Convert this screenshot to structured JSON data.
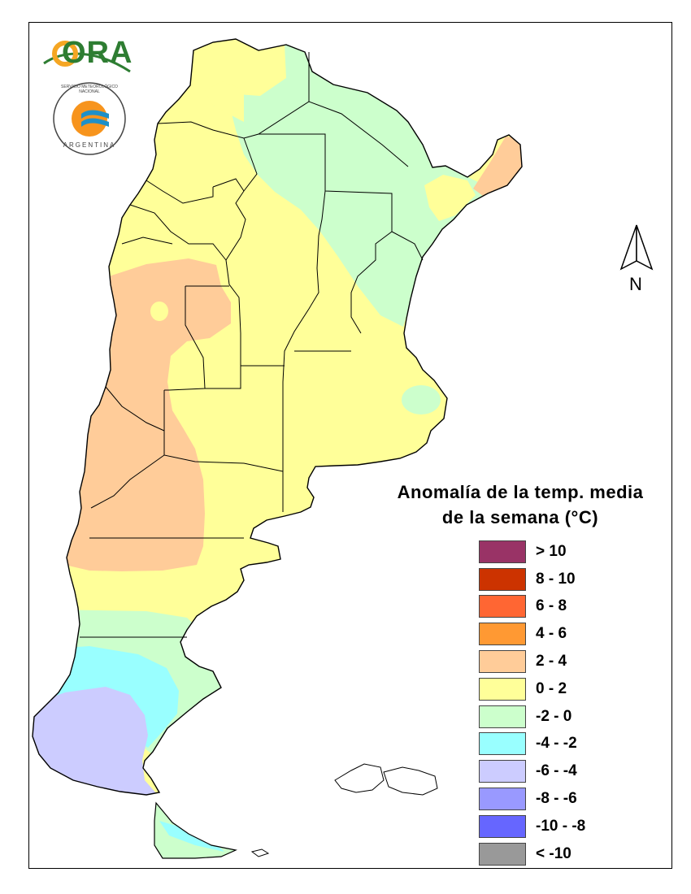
{
  "logos": {
    "ora_text": "ORA",
    "smn_ring_text": "SERVICIO METEOROLÓGICO NACIONAL",
    "smn_country": "ARGENTINA"
  },
  "north_arrow": {
    "label": "N"
  },
  "legend": {
    "title_line1": "Anomalía de la temp. media",
    "title_line2": "de la semana (°C)",
    "items": [
      {
        "label": "> 10",
        "color": "#993366"
      },
      {
        "label": "8 - 10",
        "color": "#cc3300"
      },
      {
        "label": "6 - 8",
        "color": "#ff6633"
      },
      {
        "label": "4 - 6",
        "color": "#ff9933"
      },
      {
        "label": "2 - 4",
        "color": "#ffcc99"
      },
      {
        "label": "0 - 2",
        "color": "#ffff99"
      },
      {
        "label": "-2 - 0",
        "color": "#ccffcc"
      },
      {
        "label": "-4 - -2",
        "color": "#99ffff"
      },
      {
        "label": "-6 - -4",
        "color": "#ccccff"
      },
      {
        "label": "-8 - -6",
        "color": "#9999ff"
      },
      {
        "label": "-10 - -8",
        "color": "#6666ff"
      },
      {
        "label": "< -10",
        "color": "#999999"
      }
    ]
  }
}
